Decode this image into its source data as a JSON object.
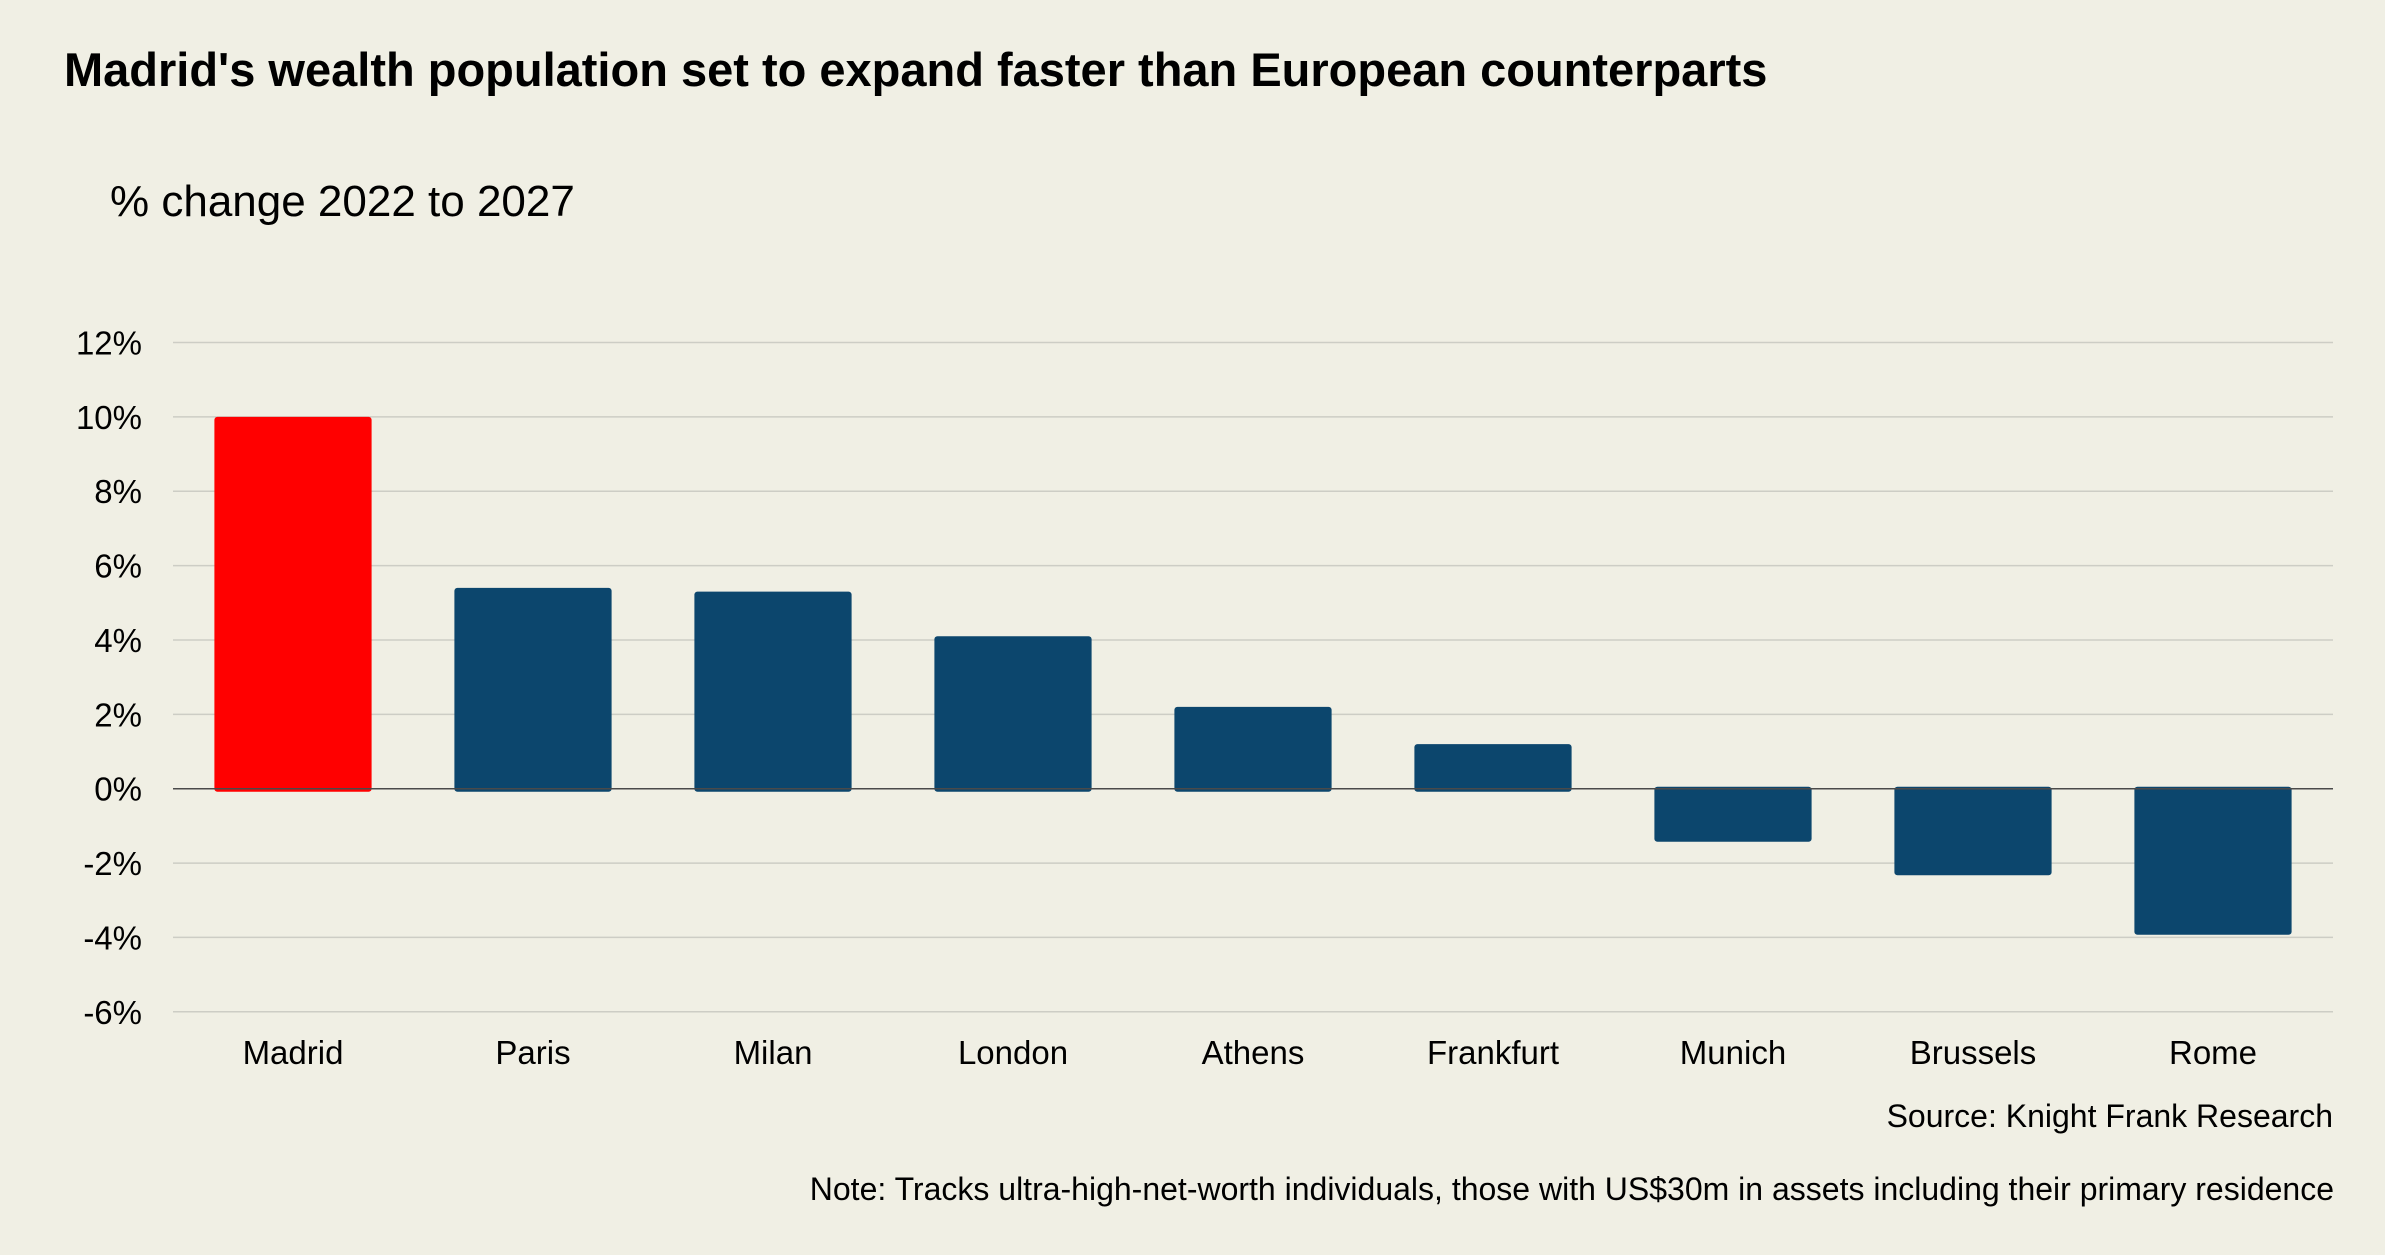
{
  "chart_data": {
    "type": "bar",
    "title": "Madrid's wealth population set to expand faster than European counterparts",
    "subtitle": "% change 2022 to 2027",
    "xlabel": "",
    "ylabel": "% change 2022 to 2027",
    "categories": [
      "Madrid",
      "Paris",
      "Milan",
      "London",
      "Athens",
      "Frankfurt",
      "Munich",
      "Brussels",
      "Rome"
    ],
    "values": [
      10.0,
      5.4,
      5.3,
      4.1,
      2.2,
      1.2,
      -1.4,
      -2.3,
      -3.9
    ],
    "ylim": [
      -6,
      12
    ],
    "yticks": [
      12,
      10,
      8,
      6,
      4,
      2,
      0,
      -2,
      -4,
      -6
    ],
    "ytick_labels": [
      "12%",
      "10%",
      "8%",
      "6%",
      "4%",
      "2%",
      "0%",
      "-2%",
      "-4%",
      "-6%"
    ],
    "grid": true,
    "legend": "none",
    "highlight": {
      "category": "Madrid",
      "color": "#ff0000"
    },
    "bar_color": "#0c466d",
    "source": "Source: Knight Frank Research",
    "note": "Note: Tracks ultra-high-net-worth individuals, those with US$30m in assets including their primary residence"
  },
  "colors": {
    "background": "#f0efe4",
    "gridline": "#cdcdc5",
    "zero_line": "#4a4a4a"
  }
}
